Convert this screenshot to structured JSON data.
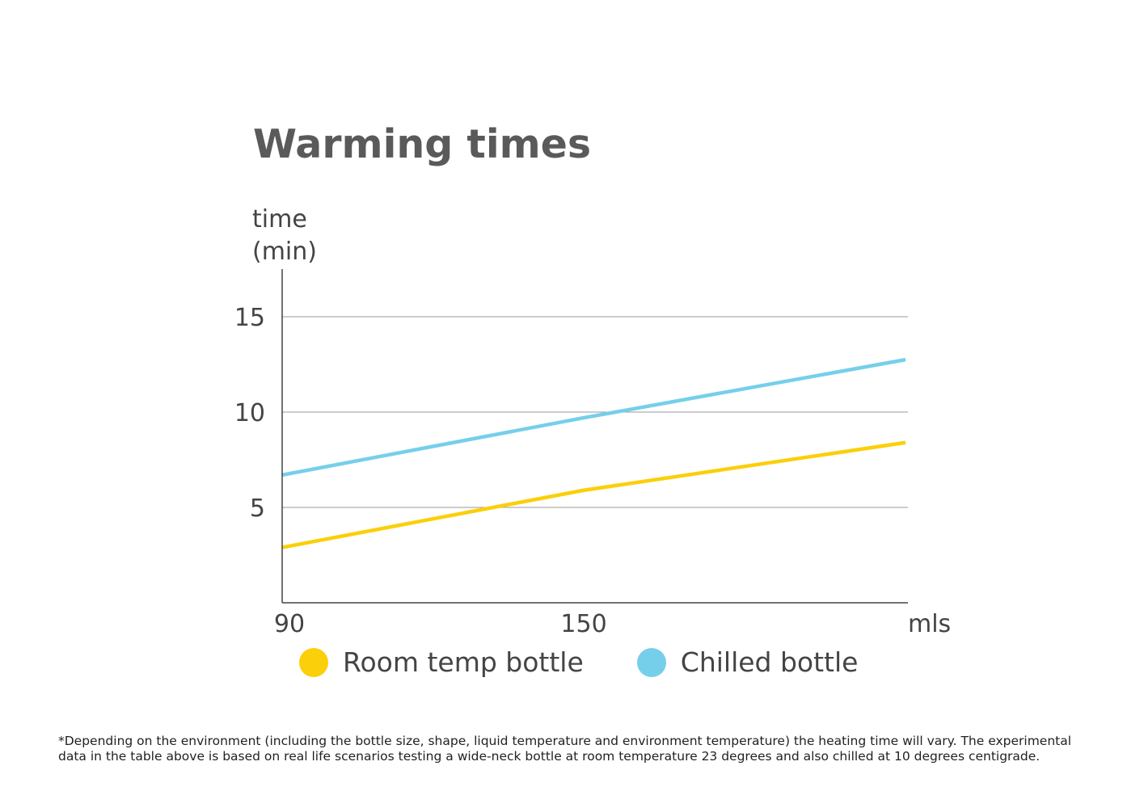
{
  "chart_data": {
    "type": "line",
    "title": "Warming times",
    "ylabel_line1": "time",
    "ylabel_line2": "(min)",
    "xlabel": "mls",
    "xlim": [
      90,
      214
    ],
    "ylim": [
      0,
      17.5
    ],
    "yticks": [
      5,
      10,
      15
    ],
    "xticks": [
      90,
      150
    ],
    "grid": true,
    "legend_placement": "bottom",
    "series": [
      {
        "name": "Room temp bottle",
        "color": "#FBCF0A",
        "x": [
          90,
          150,
          214
        ],
        "y": [
          2.9,
          5.9,
          8.4
        ]
      },
      {
        "name": "Chilled bottle",
        "color": "#76CFEA",
        "x": [
          90,
          150,
          214
        ],
        "y": [
          6.7,
          9.7,
          12.75
        ]
      }
    ]
  },
  "footnote_line1": "*Depending on the environment (including the bottle size, shape, liquid temperature and environment temperature) the heating time will vary.  The experimental",
  "footnote_line2": "data in the table above is based on real life scenarios testing a wide-neck bottle at room temperature 23 degrees and also chilled at 10 degrees centigrade."
}
